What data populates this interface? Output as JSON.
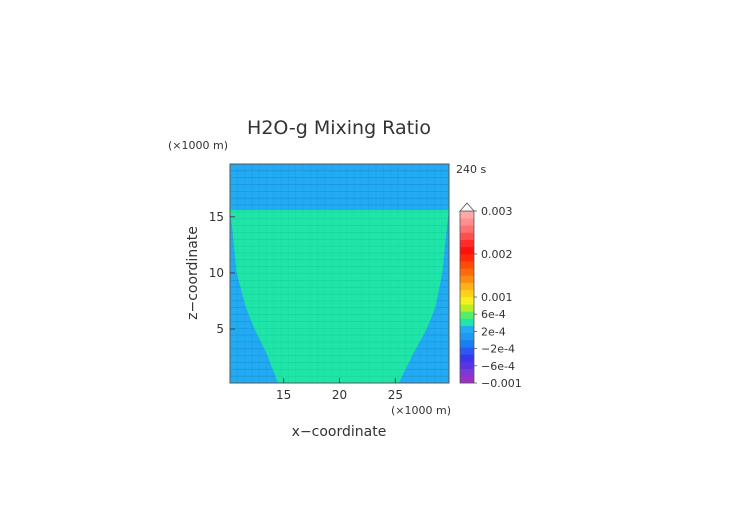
{
  "chart_data": {
    "type": "heatmap",
    "title": "H2O-g Mixing Ratio",
    "time_label": "240 s",
    "xlabel": "x−coordinate",
    "ylabel": "z−coordinate",
    "x_unit": "(×1000 m)",
    "y_unit": "(×1000 m)",
    "xlim": [
      10.2,
      29.8
    ],
    "ylim": [
      0.2,
      19.7
    ],
    "x_ticks": [
      15,
      20,
      25
    ],
    "y_ticks": [
      5,
      10,
      15
    ],
    "grid": true,
    "background_value": "-2e-4",
    "region": {
      "value": "2e-4",
      "top_z": 15.6,
      "left_boundary": [
        [
          15.6,
          10.2
        ],
        [
          14,
          10.4
        ],
        [
          10,
          10.8
        ],
        [
          7,
          11.6
        ],
        [
          5,
          12.4
        ],
        [
          3,
          13.4
        ],
        [
          0.2,
          14.5
        ]
      ],
      "right_boundary": [
        [
          15.6,
          29.8
        ],
        [
          14,
          29.6
        ],
        [
          10,
          29.2
        ],
        [
          7,
          28.6
        ],
        [
          5,
          27.8
        ],
        [
          3,
          26.7
        ],
        [
          0.2,
          25.3
        ]
      ]
    },
    "colorbar": {
      "labels": [
        "0.003",
        "0.002",
        "0.001",
        "6e-4",
        "2e-4",
        "−2e-4",
        "−6e-4",
        "−0.001"
      ],
      "label_values": [
        0.003,
        0.002,
        0.001,
        0.0006,
        0.0002,
        -0.0002,
        -0.0006,
        -0.001
      ],
      "min": -0.001,
      "max": 0.003,
      "colors": [
        "#9b2fc8",
        "#7a3ad8",
        "#5a33e2",
        "#3a36f0",
        "#2a58f0",
        "#1a7ef2",
        "#1f98f0",
        "#22aaf2",
        "#1fe6a8",
        "#55ee6a",
        "#bbee22",
        "#f7f020",
        "#ffd21a",
        "#ffb01a",
        "#ff8a12",
        "#ff6a0c",
        "#ff4a08",
        "#ff2a08",
        "#ff1010",
        "#ff2a2a",
        "#ff5050",
        "#ff7070",
        "#ff8e8e",
        "#ffa8a8"
      ]
    },
    "colors": {
      "background_fill": "#22aaf2",
      "region_fill": "#1fe6a8",
      "grid_dark": "#1a90d6",
      "grid_light": "#19cf99"
    }
  }
}
